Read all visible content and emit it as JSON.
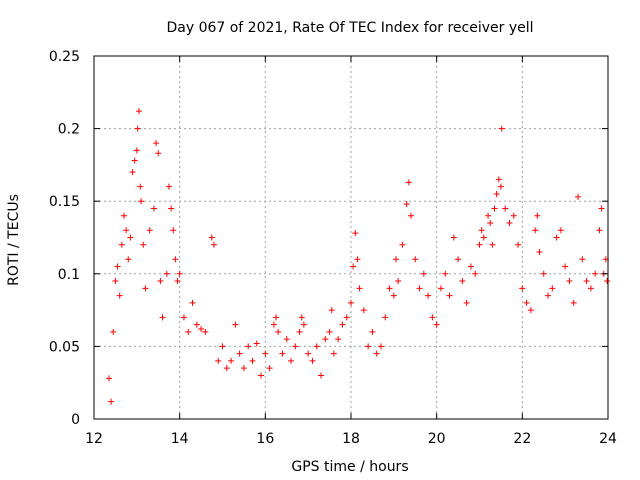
{
  "chart_data": {
    "type": "scatter",
    "title": "Day 067 of 2021, Rate Of TEC Index for receiver yell",
    "xlabel": "GPS time / hours",
    "ylabel": "ROTI / TECUs",
    "xlim": [
      12,
      24
    ],
    "ylim": [
      0,
      0.25
    ],
    "xticks": [
      12,
      14,
      16,
      18,
      20,
      22,
      24
    ],
    "yticks": [
      0,
      0.05,
      0.1,
      0.15,
      0.2,
      0.25
    ],
    "xtick_labels": [
      "12",
      "14",
      "16",
      "18",
      "20",
      "22",
      "24"
    ],
    "ytick_labels": [
      "0",
      "0.05",
      "0.1",
      "0.15",
      "0.2",
      "0.25"
    ],
    "grid": true,
    "marker": "+",
    "series": [
      {
        "name": "ROTI",
        "color": "#ff0000",
        "points": [
          [
            12.35,
            0.028
          ],
          [
            12.4,
            0.012
          ],
          [
            12.45,
            0.06
          ],
          [
            12.5,
            0.095
          ],
          [
            12.55,
            0.105
          ],
          [
            12.6,
            0.085
          ],
          [
            12.65,
            0.12
          ],
          [
            12.7,
            0.14
          ],
          [
            12.75,
            0.13
          ],
          [
            12.8,
            0.11
          ],
          [
            12.85,
            0.125
          ],
          [
            12.9,
            0.17
          ],
          [
            12.95,
            0.178
          ],
          [
            13.0,
            0.185
          ],
          [
            13.02,
            0.2
          ],
          [
            13.05,
            0.212
          ],
          [
            13.08,
            0.16
          ],
          [
            13.1,
            0.15
          ],
          [
            13.15,
            0.12
          ],
          [
            13.2,
            0.09
          ],
          [
            13.3,
            0.13
          ],
          [
            13.4,
            0.145
          ],
          [
            13.45,
            0.19
          ],
          [
            13.5,
            0.183
          ],
          [
            13.55,
            0.095
          ],
          [
            13.6,
            0.07
          ],
          [
            13.7,
            0.1
          ],
          [
            13.75,
            0.16
          ],
          [
            13.8,
            0.145
          ],
          [
            13.85,
            0.13
          ],
          [
            13.9,
            0.11
          ],
          [
            13.95,
            0.095
          ],
          [
            14.0,
            0.1
          ],
          [
            14.1,
            0.07
          ],
          [
            14.2,
            0.06
          ],
          [
            14.3,
            0.08
          ],
          [
            14.4,
            0.065
          ],
          [
            14.5,
            0.062
          ],
          [
            14.6,
            0.06
          ],
          [
            14.75,
            0.125
          ],
          [
            14.8,
            0.12
          ],
          [
            14.9,
            0.04
          ],
          [
            15.0,
            0.05
          ],
          [
            15.1,
            0.035
          ],
          [
            15.2,
            0.04
          ],
          [
            15.3,
            0.065
          ],
          [
            15.4,
            0.045
          ],
          [
            15.5,
            0.035
          ],
          [
            15.6,
            0.05
          ],
          [
            15.7,
            0.04
          ],
          [
            15.8,
            0.052
          ],
          [
            15.9,
            0.03
          ],
          [
            16.0,
            0.045
          ],
          [
            16.1,
            0.035
          ],
          [
            16.2,
            0.065
          ],
          [
            16.25,
            0.07
          ],
          [
            16.3,
            0.06
          ],
          [
            16.4,
            0.045
          ],
          [
            16.5,
            0.055
          ],
          [
            16.6,
            0.04
          ],
          [
            16.7,
            0.05
          ],
          [
            16.8,
            0.06
          ],
          [
            16.85,
            0.07
          ],
          [
            16.9,
            0.065
          ],
          [
            17.0,
            0.045
          ],
          [
            17.1,
            0.04
          ],
          [
            17.2,
            0.05
          ],
          [
            17.3,
            0.03
          ],
          [
            17.4,
            0.055
          ],
          [
            17.5,
            0.06
          ],
          [
            17.55,
            0.075
          ],
          [
            17.6,
            0.045
          ],
          [
            17.7,
            0.055
          ],
          [
            17.8,
            0.065
          ],
          [
            17.9,
            0.07
          ],
          [
            18.0,
            0.08
          ],
          [
            18.05,
            0.105
          ],
          [
            18.1,
            0.128
          ],
          [
            18.15,
            0.11
          ],
          [
            18.2,
            0.09
          ],
          [
            18.3,
            0.075
          ],
          [
            18.4,
            0.05
          ],
          [
            18.5,
            0.06
          ],
          [
            18.6,
            0.045
          ],
          [
            18.7,
            0.05
          ],
          [
            18.8,
            0.07
          ],
          [
            18.9,
            0.09
          ],
          [
            19.0,
            0.085
          ],
          [
            19.05,
            0.11
          ],
          [
            19.1,
            0.095
          ],
          [
            19.2,
            0.12
          ],
          [
            19.3,
            0.148
          ],
          [
            19.35,
            0.163
          ],
          [
            19.4,
            0.14
          ],
          [
            19.5,
            0.11
          ],
          [
            19.6,
            0.09
          ],
          [
            19.7,
            0.1
          ],
          [
            19.8,
            0.085
          ],
          [
            19.9,
            0.07
          ],
          [
            20.0,
            0.065
          ],
          [
            20.1,
            0.09
          ],
          [
            20.2,
            0.1
          ],
          [
            20.3,
            0.085
          ],
          [
            20.4,
            0.125
          ],
          [
            20.5,
            0.11
          ],
          [
            20.6,
            0.095
          ],
          [
            20.7,
            0.08
          ],
          [
            20.8,
            0.105
          ],
          [
            20.9,
            0.1
          ],
          [
            21.0,
            0.12
          ],
          [
            21.05,
            0.13
          ],
          [
            21.1,
            0.125
          ],
          [
            21.2,
            0.14
          ],
          [
            21.25,
            0.135
          ],
          [
            21.3,
            0.12
          ],
          [
            21.35,
            0.145
          ],
          [
            21.4,
            0.155
          ],
          [
            21.45,
            0.165
          ],
          [
            21.5,
            0.16
          ],
          [
            21.52,
            0.2
          ],
          [
            21.6,
            0.145
          ],
          [
            21.7,
            0.135
          ],
          [
            21.8,
            0.14
          ],
          [
            21.9,
            0.12
          ],
          [
            22.0,
            0.09
          ],
          [
            22.1,
            0.08
          ],
          [
            22.2,
            0.075
          ],
          [
            22.3,
            0.13
          ],
          [
            22.35,
            0.14
          ],
          [
            22.4,
            0.115
          ],
          [
            22.5,
            0.1
          ],
          [
            22.6,
            0.085
          ],
          [
            22.7,
            0.09
          ],
          [
            22.8,
            0.125
          ],
          [
            22.9,
            0.13
          ],
          [
            23.0,
            0.105
          ],
          [
            23.1,
            0.095
          ],
          [
            23.2,
            0.08
          ],
          [
            23.3,
            0.153
          ],
          [
            23.4,
            0.11
          ],
          [
            23.5,
            0.095
          ],
          [
            23.6,
            0.09
          ],
          [
            23.7,
            0.1
          ],
          [
            23.8,
            0.13
          ],
          [
            23.85,
            0.145
          ],
          [
            23.9,
            0.1
          ],
          [
            23.95,
            0.11
          ],
          [
            23.98,
            0.095
          ]
        ]
      }
    ]
  }
}
